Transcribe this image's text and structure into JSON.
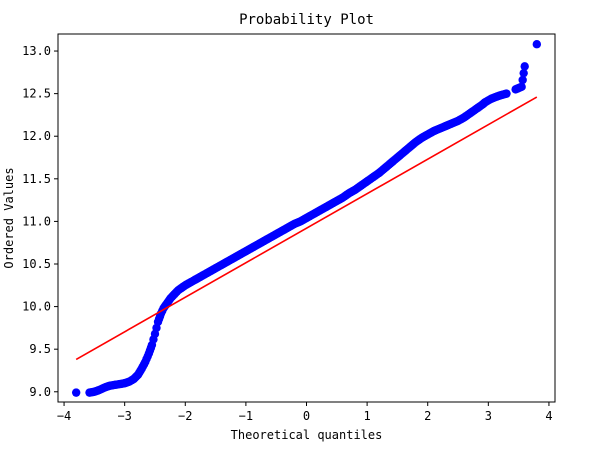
{
  "chart_data": {
    "type": "scatter",
    "title": "Probability Plot",
    "xlabel": "Theoretical quantiles",
    "ylabel": "Ordered Values",
    "xlim": [
      -4.1,
      4.1
    ],
    "ylim": [
      8.88,
      13.2
    ],
    "xticks": [
      -4,
      -3,
      -2,
      -1,
      0,
      1,
      2,
      3,
      4
    ],
    "xtick_labels": [
      "−4",
      "−3",
      "−2",
      "−1",
      "0",
      "1",
      "2",
      "3",
      "4"
    ],
    "yticks": [
      9.0,
      9.5,
      10.0,
      10.5,
      11.0,
      11.5,
      12.0,
      12.5,
      13.0
    ],
    "ytick_labels": [
      "9.0",
      "9.5",
      "10.0",
      "10.5",
      "11.0",
      "11.5",
      "12.0",
      "12.5",
      "13.0"
    ],
    "grid": false,
    "legend": "none",
    "series": [
      {
        "kind": "points",
        "color": "#0000ff",
        "x": [
          -3.8,
          -3.58,
          -3.5,
          -3.42,
          -3.33,
          -3.25,
          -3.17,
          -3.08,
          -3.0,
          -2.92,
          -2.85,
          -2.78,
          -2.72,
          -2.66,
          -2.6,
          -2.55,
          -2.5,
          -2.45,
          -2.4,
          -2.36,
          -2.32,
          -2.28,
          -2.24,
          -2.2,
          -2.16,
          -2.12,
          -2.08,
          -2.04,
          -2.0,
          -1.95,
          -1.9,
          -1.85,
          -1.8,
          -1.7,
          -1.6,
          -1.5,
          -1.4,
          -1.3,
          -1.2,
          -1.1,
          -1.0,
          -0.9,
          -0.8,
          -0.7,
          -0.6,
          -0.5,
          -0.4,
          -0.3,
          -0.2,
          -0.1,
          0.0,
          0.1,
          0.2,
          0.3,
          0.4,
          0.5,
          0.6,
          0.7,
          0.8,
          0.9,
          1.0,
          1.1,
          1.2,
          1.3,
          1.4,
          1.5,
          1.6,
          1.7,
          1.8,
          1.9,
          2.0,
          2.1,
          2.2,
          2.3,
          2.4,
          2.5,
          2.6,
          2.7,
          2.8,
          2.9,
          2.95,
          3.0,
          3.05,
          3.12,
          3.2,
          3.3,
          3.45,
          3.55,
          3.6,
          3.8
        ],
        "y": [
          8.99,
          8.99,
          9.0,
          9.02,
          9.05,
          9.07,
          9.08,
          9.09,
          9.1,
          9.12,
          9.15,
          9.2,
          9.27,
          9.35,
          9.45,
          9.55,
          9.68,
          9.82,
          9.92,
          9.98,
          10.02,
          10.06,
          10.1,
          10.13,
          10.16,
          10.19,
          10.21,
          10.23,
          10.25,
          10.27,
          10.29,
          10.31,
          10.33,
          10.37,
          10.41,
          10.45,
          10.49,
          10.53,
          10.57,
          10.61,
          10.65,
          10.69,
          10.73,
          10.77,
          10.81,
          10.85,
          10.89,
          10.93,
          10.97,
          11.0,
          11.04,
          11.08,
          11.12,
          11.16,
          11.2,
          11.24,
          11.28,
          11.33,
          11.37,
          11.42,
          11.47,
          11.52,
          11.57,
          11.63,
          11.69,
          11.75,
          11.81,
          11.87,
          11.93,
          11.98,
          12.02,
          12.06,
          12.09,
          12.12,
          12.15,
          12.18,
          12.22,
          12.27,
          12.32,
          12.37,
          12.4,
          12.42,
          12.44,
          12.46,
          12.48,
          12.5,
          12.55,
          12.58,
          12.82,
          13.08
        ]
      },
      {
        "kind": "fit-line",
        "color": "#ff0000",
        "x": [
          -3.8,
          3.8
        ],
        "y": [
          9.38,
          12.46
        ]
      }
    ]
  }
}
